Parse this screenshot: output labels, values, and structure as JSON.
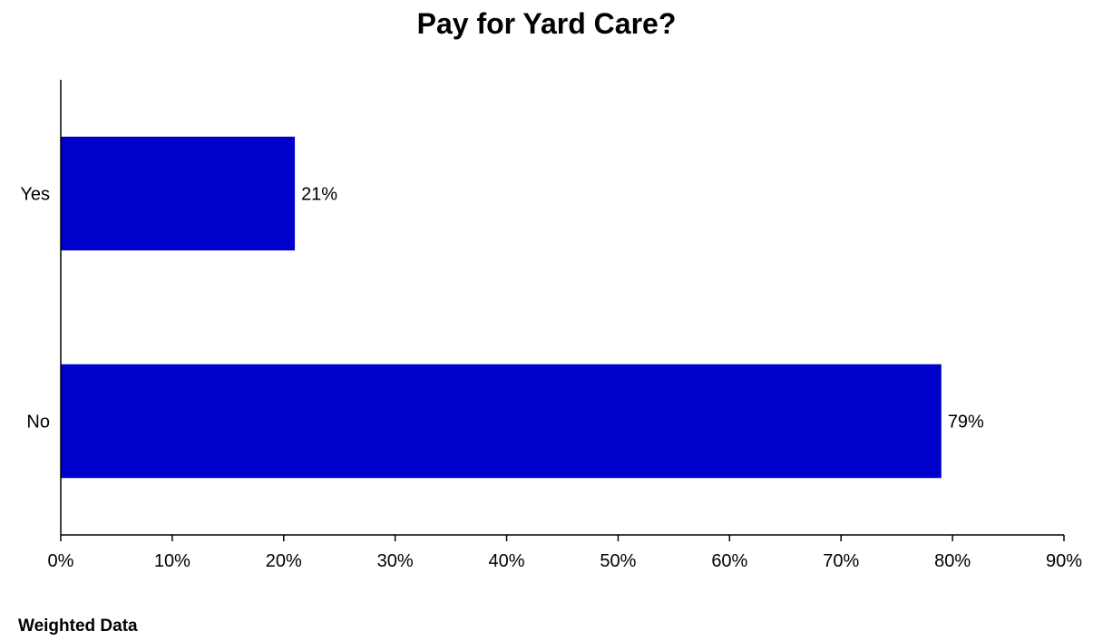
{
  "chart_data": {
    "type": "bar",
    "orientation": "horizontal",
    "title": "Pay for Yard Care?",
    "categories": [
      "Yes",
      "No"
    ],
    "values": [
      21,
      79
    ],
    "value_labels": [
      "21%",
      "79%"
    ],
    "xlim": [
      0,
      90
    ],
    "x_ticks": [
      0,
      10,
      20,
      30,
      40,
      50,
      60,
      70,
      80,
      90
    ],
    "x_tick_labels": [
      "0%",
      "10%",
      "20%",
      "30%",
      "40%",
      "50%",
      "60%",
      "70%",
      "80%",
      "90%"
    ],
    "xlabel": "",
    "ylabel": "",
    "grid": false,
    "legend": "none",
    "bar_color": "#0000CC"
  },
  "footnote": "Weighted Data"
}
